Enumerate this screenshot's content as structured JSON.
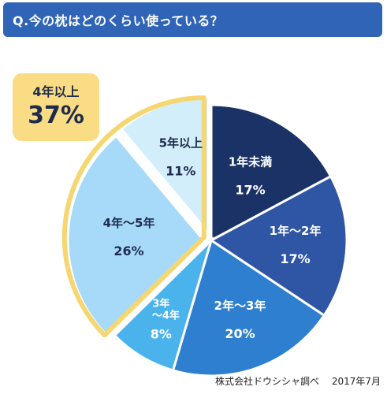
{
  "title": "Q.今の枕はどのくらい使っている？",
  "highlight": {
    "label": "4年以上",
    "value": "37%"
  },
  "source": {
    "org": "株式会社ドウシシャ調べ",
    "date": "2017年7月"
  },
  "colors": {
    "title_bg": "#2f64b7",
    "highlight_border": "#f5d670",
    "highlight_badge": "#f9dc83"
  },
  "chart_data": {
    "type": "pie",
    "start": "12 o'clock",
    "direction": "clockwise",
    "series": [
      {
        "label": "1年未満",
        "value": 17,
        "display": "17%",
        "color": "#1a3266",
        "text_color": "#ffffff"
      },
      {
        "label": "1年～2年",
        "value": 17,
        "display": "17%",
        "color": "#2f55a5",
        "text_color": "#ffffff"
      },
      {
        "label": "2年～3年",
        "value": 20,
        "display": "20%",
        "color": "#2f7fd0",
        "text_color": "#ffffff"
      },
      {
        "label": "3年～4年",
        "value": 8,
        "display": "8%",
        "color": "#4ab3ec",
        "text_color": "#ffffff"
      },
      {
        "label": "4年～5年",
        "value": 26,
        "display": "26%",
        "color": "#a6daf8",
        "text_color": "#1f2b4d"
      },
      {
        "label": "5年以上",
        "value": 11,
        "display": "11%",
        "color": "#d3eefb",
        "text_color": "#1f2b4d"
      }
    ],
    "highlighted_group": [
      "4年～5年",
      "5年以上"
    ]
  }
}
